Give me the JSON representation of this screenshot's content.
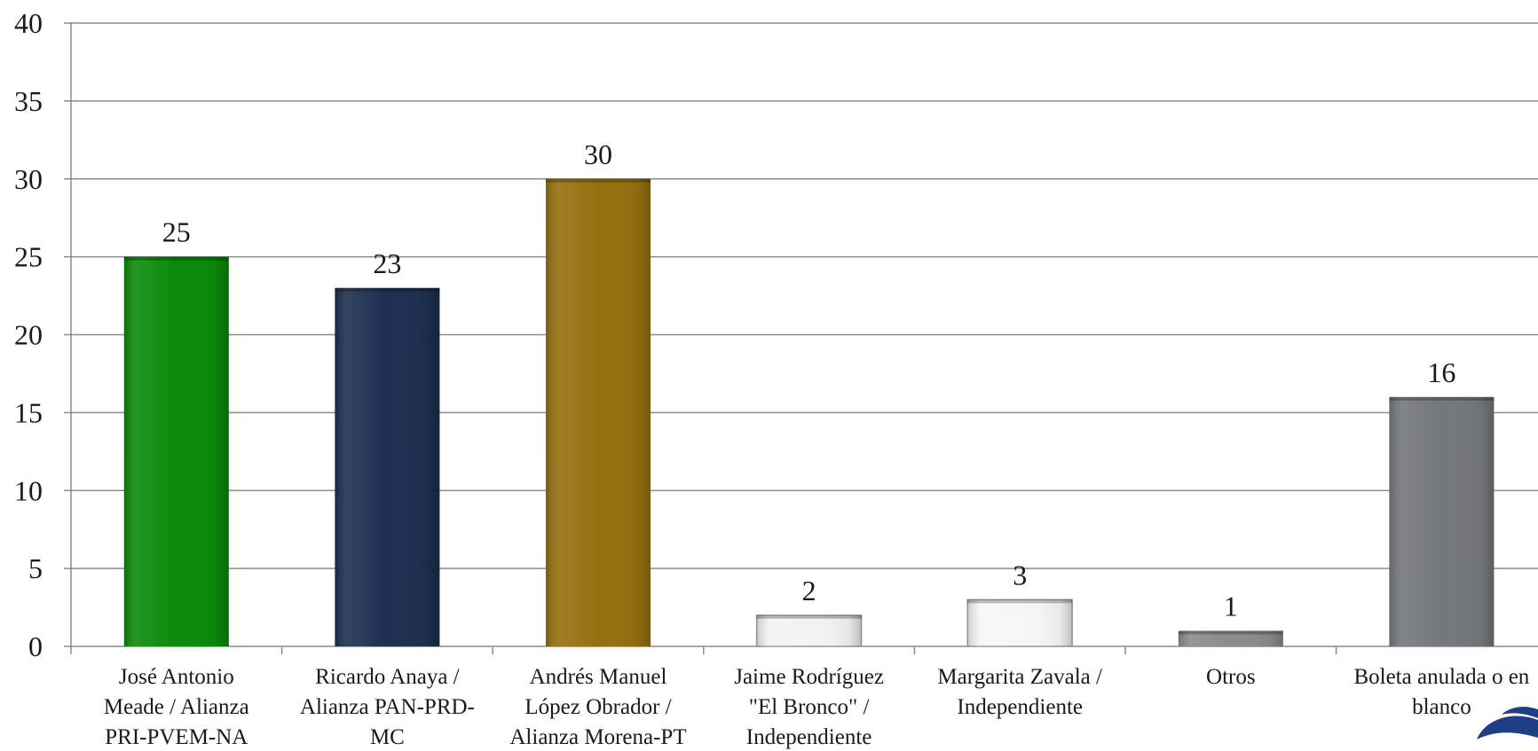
{
  "chart_data": {
    "type": "bar",
    "categories": [
      [
        "José Antonio",
        "Meade / Alianza",
        "PRI-PVEM-NA"
      ],
      [
        "Ricardo Anaya /",
        "Alianza PAN-PRD-",
        "MC"
      ],
      [
        "Andrés Manuel",
        "López Obrador /",
        "Alianza Morena-PT"
      ],
      [
        "Jaime Rodríguez",
        "\"El Bronco\" /",
        "Independiente"
      ],
      [
        "Margarita Zavala /",
        "Independiente"
      ],
      [
        "Otros"
      ],
      [
        "Boleta anulada o en",
        "blanco"
      ]
    ],
    "values": [
      25,
      23,
      30,
      2,
      3,
      1,
      16
    ],
    "data_labels": [
      "25",
      "23",
      "30",
      "2",
      "3",
      "1",
      "16"
    ],
    "colors": [
      "#0a8a0a",
      "#1c2f4f",
      "#96700f",
      "#f3f3f3",
      "#f6f6f6",
      "#8a8d8a",
      "#76777b"
    ],
    "ylim": [
      0,
      40
    ],
    "yticks": [
      "0",
      "5",
      "10",
      "15",
      "20",
      "25",
      "30",
      "35",
      "40"
    ],
    "grid": true,
    "title": "",
    "xlabel": "",
    "ylabel": ""
  },
  "logo": {
    "name": "swoosh-logo-icon",
    "color": "#1e3f86"
  }
}
